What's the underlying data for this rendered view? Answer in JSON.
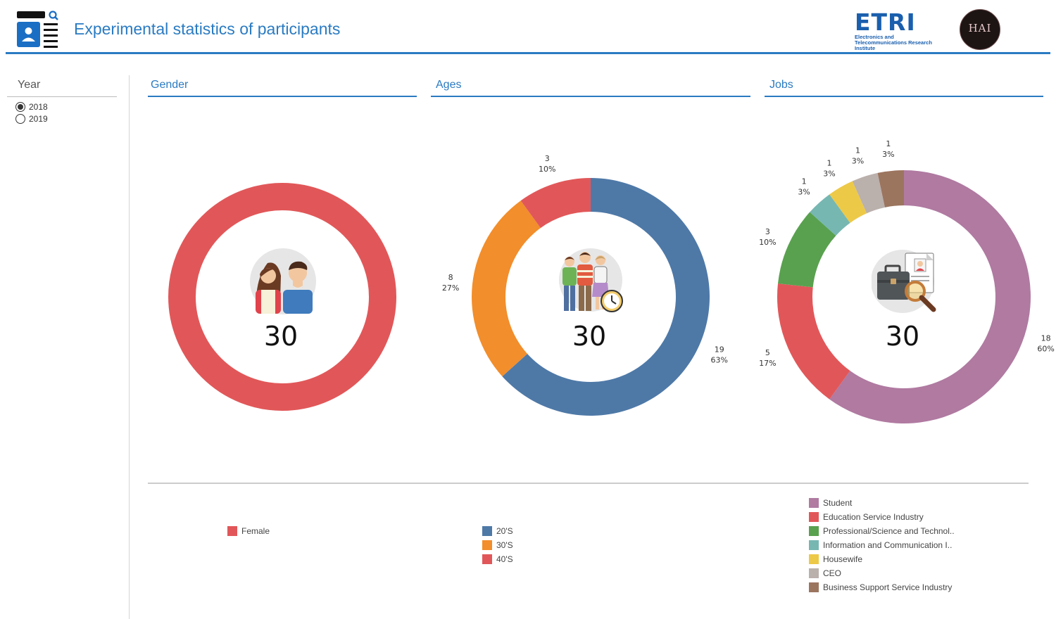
{
  "header": {
    "title": "Experimental statistics of participants",
    "etri_logo_text": "ETRI",
    "etri_logo_subtitle": "Electronics and Telecommunications Research Institute",
    "hai_logo_text": "HAI",
    "app_icon": "dashboard-profile-icon"
  },
  "filter": {
    "title": "Year",
    "options": [
      {
        "label": "2018",
        "selected": true
      },
      {
        "label": "2019",
        "selected": false
      }
    ]
  },
  "sections": {
    "gender": {
      "title": "Gender",
      "icon": "couple-icon"
    },
    "ages": {
      "title": "Ages",
      "icon": "people-clock-icon"
    },
    "jobs": {
      "title": "Jobs",
      "icon": "briefcase-search-icon"
    }
  },
  "chart_data": [
    {
      "type": "pie",
      "style": "donut",
      "total": "30",
      "categories": [
        "Female"
      ],
      "values": [
        30
      ],
      "percents": [],
      "colors": [
        "#e15759"
      ]
    },
    {
      "type": "pie",
      "style": "donut",
      "total": "30",
      "categories": [
        "20'S",
        "30'S",
        "40'S"
      ],
      "values": [
        19,
        8,
        3
      ],
      "percents": [
        "63%",
        "27%",
        "10%"
      ],
      "colors": [
        "#4e79a7",
        "#f28e2b",
        "#e15759"
      ]
    },
    {
      "type": "pie",
      "style": "donut",
      "total": "30",
      "categories": [
        "Student",
        "Education Service Industry",
        "Professional/Science and Technol..",
        "Information and Communication I..",
        "Housewife",
        "CEO",
        "Business Support Service Industry"
      ],
      "values": [
        18,
        5,
        3,
        1,
        1,
        1,
        1
      ],
      "percents": [
        "60%",
        "17%",
        "10%",
        "3%",
        "3%",
        "3%",
        "3%"
      ],
      "colors": [
        "#b07aa1",
        "#e15759",
        "#59a14f",
        "#76b7b2",
        "#edc948",
        "#bab0ac",
        "#9c755f"
      ]
    }
  ]
}
